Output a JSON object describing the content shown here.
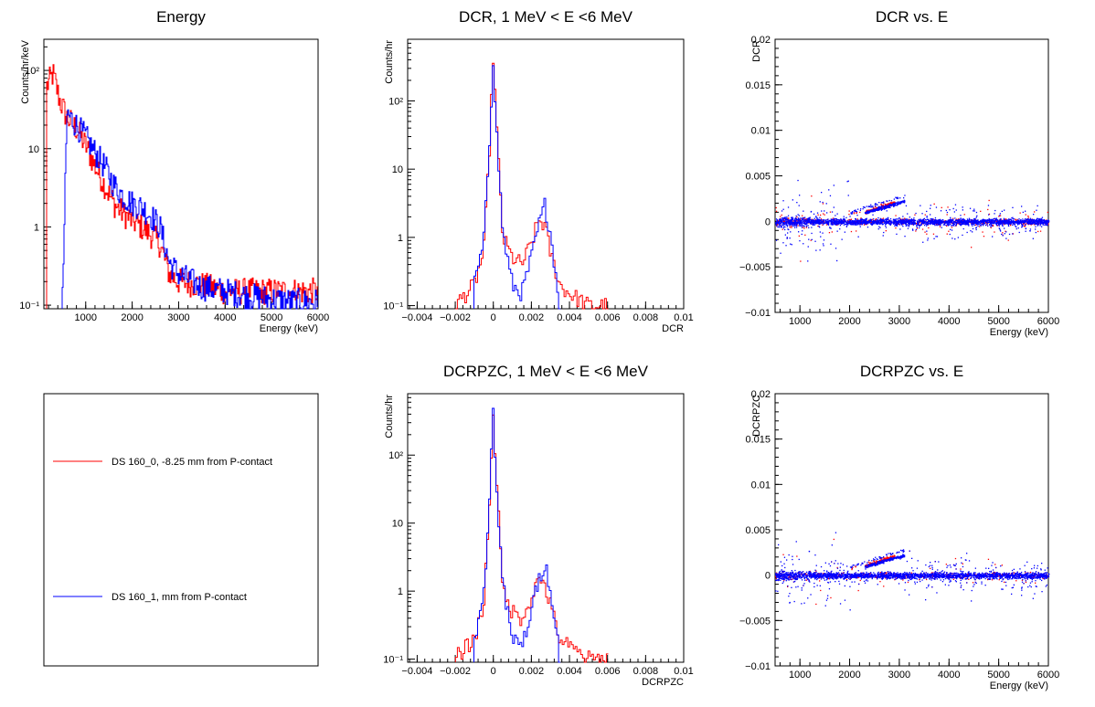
{
  "chart_data": [
    {
      "type": "line",
      "title": "Energy",
      "xlabel": "Energy (keV)",
      "ylabel": "Counts/hr/keV",
      "xlim": [
        100,
        6000
      ],
      "ylim": [
        0.09,
        250
      ],
      "ylog": true,
      "x_ticks": [
        "1000",
        "2000",
        "3000",
        "4000",
        "5000",
        "6000"
      ],
      "y_ticks": [
        "10⁻¹",
        "1",
        "10",
        "10²"
      ],
      "series": [
        {
          "name": "DS 160_0, -8.25 mm from P-contact",
          "color": "#ff0000",
          "x": [
            150,
            300,
            450,
            600,
            800,
            1000,
            1200,
            1400,
            1600,
            1800,
            2000,
            2200,
            2400,
            2600,
            2800,
            3000,
            3500,
            4000,
            4500,
            5000,
            5500,
            6000
          ],
          "y": [
            60,
            90,
            40,
            25,
            18,
            11,
            6,
            3.5,
            2,
            1.5,
            1.2,
            1,
            0.8,
            0.6,
            0.25,
            0.2,
            0.18,
            0.15,
            0.15,
            0.15,
            0.15,
            0.15
          ]
        },
        {
          "name": "DS 160_1,  mm from P-contact",
          "color": "#0000ff",
          "x": [
            500,
            600,
            800,
            1000,
            1200,
            1400,
            1600,
            1800,
            2000,
            2200,
            2400,
            2600,
            2800,
            3000,
            3500,
            4000,
            4500,
            5000,
            5500,
            6000
          ],
          "y": [
            0.1,
            28,
            20,
            14,
            9,
            6,
            3.5,
            2.5,
            2,
            1.8,
            1.4,
            1,
            0.35,
            0.25,
            0.17,
            0.15,
            0.13,
            0.12,
            0.11,
            0.11
          ]
        }
      ]
    },
    {
      "type": "line",
      "title": "DCR, 1 MeV < E <6 MeV",
      "xlabel": "DCR",
      "ylabel": "Counts/hr",
      "xlim": [
        -0.0045,
        0.01
      ],
      "ylim": [
        0.09,
        800
      ],
      "ylog": true,
      "x_ticks": [
        "−0.004",
        "−0.002",
        "0",
        "0.002",
        "0.004",
        "0.006",
        "0.008",
        "0.01"
      ],
      "y_ticks": [
        "10⁻¹",
        "1",
        "10",
        "10²"
      ],
      "series": [
        {
          "name": "DS 160_0, -8.25 mm from P-contact",
          "color": "#ff0000",
          "x": [
            -0.002,
            -0.001,
            -0.0005,
            -0.0002,
            0,
            0.0002,
            0.0005,
            0.001,
            0.0015,
            0.002,
            0.0024,
            0.0027,
            0.003,
            0.0035,
            0.004,
            0.005,
            0.006
          ],
          "y": [
            0.1,
            0.2,
            0.6,
            20,
            480,
            30,
            1.0,
            0.5,
            0.4,
            0.8,
            1.8,
            1.5,
            0.6,
            0.2,
            0.15,
            0.1,
            0.1
          ]
        },
        {
          "name": "DS 160_1,  mm from P-contact",
          "color": "#0000ff",
          "x": [
            -0.001,
            -0.0005,
            -0.0002,
            0,
            0.0002,
            0.0005,
            0.001,
            0.0015,
            0.002,
            0.0024,
            0.0027,
            0.003,
            0.0035
          ],
          "y": [
            0.2,
            0.8,
            25,
            450,
            25,
            1.2,
            0.2,
            0.15,
            0.5,
            1.5,
            3.0,
            1.2,
            0.1
          ]
        }
      ]
    },
    {
      "type": "scatter",
      "title": "DCR vs. E",
      "xlabel": "Energy (keV)",
      "ylabel": "DCR",
      "xlim": [
        500,
        6000
      ],
      "ylim": [
        -0.01,
        0.02
      ],
      "x_ticks": [
        "1000",
        "2000",
        "3000",
        "4000",
        "5000",
        "6000"
      ],
      "y_ticks": [
        "−0.01",
        "−0.005",
        "0",
        "0.005",
        "0.01",
        "0.015",
        "0.02"
      ],
      "series": [
        {
          "name": "DS 160_0, -8.25 mm from P-contact",
          "color": "#ff0000",
          "x": [
            1000,
            1500,
            2000,
            2400,
            2600,
            2800,
            3000,
            3500,
            4500
          ],
          "y": [
            0.0,
            0.0,
            0.0,
            0.0018,
            0.0022,
            0.0026,
            0.0,
            0.0,
            0.0
          ]
        },
        {
          "name": "DS 160_1,  mm from P-contact",
          "color": "#0000ff",
          "x": [
            1000,
            1500,
            2000,
            2500,
            3000,
            3500,
            4000,
            5000,
            6000
          ],
          "y": [
            0.0001,
            0.0,
            0.0,
            0.0022,
            0.0026,
            0.0,
            0.0,
            0.0,
            -0.0002
          ]
        }
      ]
    },
    {
      "type": "line",
      "title": "DCRPZC, 1 MeV < E <6 MeV",
      "xlabel": "DCRPZC",
      "ylabel": "Counts/hr",
      "xlim": [
        -0.0045,
        0.01
      ],
      "ylim": [
        0.09,
        800
      ],
      "ylog": true,
      "x_ticks": [
        "−0.004",
        "−0.002",
        "0",
        "0.002",
        "0.004",
        "0.006",
        "0.008",
        "0.01"
      ],
      "y_ticks": [
        "10⁻¹",
        "1",
        "10",
        "10²"
      ],
      "series": [
        {
          "name": "DS 160_0, -8.25 mm from P-contact",
          "color": "#ff0000",
          "x": [
            -0.002,
            -0.001,
            -0.0005,
            -0.0002,
            0,
            0.0002,
            0.0005,
            0.001,
            0.0015,
            0.002,
            0.0024,
            0.0027,
            0.003,
            0.0035,
            0.004,
            0.005,
            0.006
          ],
          "y": [
            0.1,
            0.2,
            0.6,
            20,
            480,
            30,
            1.0,
            0.5,
            0.4,
            0.8,
            1.5,
            1.3,
            0.6,
            0.2,
            0.15,
            0.1,
            0.1
          ]
        },
        {
          "name": "DS 160_1,  mm from P-contact",
          "color": "#0000ff",
          "x": [
            -0.001,
            -0.0005,
            -0.0002,
            0,
            0.0002,
            0.0005,
            0.001,
            0.0015,
            0.002,
            0.0024,
            0.0027,
            0.003,
            0.0035
          ],
          "y": [
            0.2,
            0.8,
            25,
            450,
            25,
            1.2,
            0.2,
            0.15,
            0.5,
            1.5,
            2.5,
            1.2,
            0.1
          ]
        }
      ]
    },
    {
      "type": "scatter",
      "title": "DCRPZC vs. E",
      "xlabel": "Energy (keV)",
      "ylabel": "DCRPZC",
      "xlim": [
        500,
        6000
      ],
      "ylim": [
        -0.01,
        0.02
      ],
      "x_ticks": [
        "1000",
        "2000",
        "3000",
        "4000",
        "5000",
        "6000"
      ],
      "y_ticks": [
        "−0.01",
        "−0.005",
        "0",
        "0.005",
        "0.01",
        "0.015",
        "0.02"
      ],
      "series": [
        {
          "name": "DS 160_0, -8.25 mm from P-contact",
          "color": "#ff0000",
          "x": [
            1000,
            1500,
            2000,
            2400,
            2600,
            2800,
            3000,
            3500,
            4500
          ],
          "y": [
            0.0,
            0.0,
            0.0,
            0.0018,
            0.0024,
            0.0029,
            0.0,
            0.0,
            0.0
          ]
        },
        {
          "name": "DS 160_1,  mm from P-contact",
          "color": "#0000ff",
          "x": [
            1000,
            1500,
            2000,
            2500,
            3000,
            3500,
            4000,
            5000,
            6000
          ],
          "y": [
            0.0001,
            0.0,
            0.0,
            0.0024,
            0.0028,
            0.0,
            0.0,
            0.0,
            0.0
          ]
        }
      ]
    }
  ],
  "legend": {
    "entries": [
      {
        "label": "DS 160_0, -8.25 mm from P-contact",
        "color": "#ff0000"
      },
      {
        "label": "DS 160_1,  mm from P-contact",
        "color": "#0000ff"
      }
    ]
  }
}
